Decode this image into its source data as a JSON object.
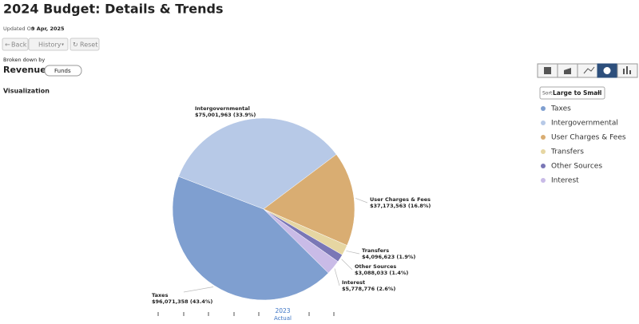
{
  "header": {
    "title": "2024 Budget: Details & Trends",
    "updated_label": "Updated On",
    "updated_date": "9 Apr, 2025"
  },
  "toolbar": {
    "back": "Back",
    "history": "History",
    "reset": "Reset"
  },
  "breakdown": {
    "label": "Broken down by",
    "value": "Revenues",
    "filter": "Funds"
  },
  "section_title": "Visualization",
  "sort": {
    "label": "Sort",
    "value": "Large to Small"
  },
  "timeline": {
    "year": "2023",
    "label": "Actual"
  },
  "chart_data": {
    "type": "pie",
    "categories": [
      "Taxes",
      "Intergovernmental",
      "User Charges & Fees",
      "Transfers",
      "Other Sources",
      "Interest"
    ],
    "values": [
      96071358,
      75001963,
      37173563,
      4096623,
      3088033,
      5778776
    ],
    "value_labels": [
      "$96,071,358 (43.4%)",
      "$75,001,963 (33.9%)",
      "$37,173,563 (16.8%)",
      "$4,096,623 (1.9%)",
      "$3,088,033 (1.4%)",
      "$5,778,776 (2.6%)"
    ],
    "colors": [
      "#7f9fd0",
      "#b7c9e7",
      "#d9ad72",
      "#e6d6a2",
      "#7a77b6",
      "#c9bbe7"
    ],
    "legend": "right"
  }
}
